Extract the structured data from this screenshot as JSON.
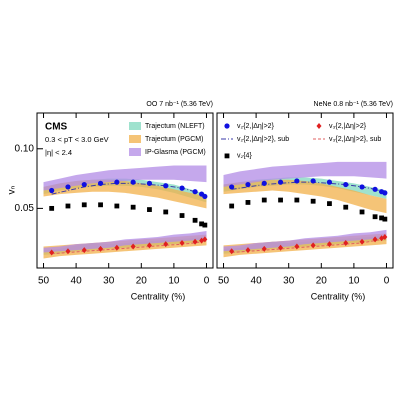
{
  "chart_data": [
    {
      "type": "scatter",
      "title": "OO 7 nb⁻¹ (5.36 TeV)",
      "y_label": "vₙ",
      "x_label": "Centrality (%)",
      "annotations": [
        "CMS",
        "0.3 < pT < 3.0 GeV",
        "|η| < 2.4"
      ],
      "xlim": [
        52,
        -2
      ],
      "xticks": [
        50,
        40,
        30,
        20,
        10,
        0
      ],
      "ylim": [
        0,
        0.13
      ],
      "yticks": [
        0.05,
        {
          "value": 0.1,
          "label": "0.10"
        }
      ],
      "bands": [
        {
          "name": "Trajectum (NLEFT)",
          "color": "#7fd8bd",
          "x": [
            50,
            45,
            40,
            35,
            30,
            25,
            20,
            15,
            10,
            5,
            0
          ],
          "lower": [
            0.062,
            0.065,
            0.067,
            0.068,
            0.069,
            0.069,
            0.068,
            0.066,
            0.063,
            0.059,
            0.055
          ],
          "upper": [
            0.068,
            0.071,
            0.073,
            0.074,
            0.075,
            0.075,
            0.074,
            0.072,
            0.07,
            0.066,
            0.062
          ]
        },
        {
          "name": "Trajectum (PGCM)",
          "color": "#f2b04a",
          "x": [
            50,
            45,
            40,
            35,
            30,
            25,
            20,
            15,
            10,
            5,
            0
          ],
          "lower": [
            0.06,
            0.062,
            0.063,
            0.064,
            0.064,
            0.063,
            0.061,
            0.059,
            0.056,
            0.053,
            0.05
          ],
          "upper": [
            0.068,
            0.071,
            0.073,
            0.074,
            0.074,
            0.073,
            0.071,
            0.069,
            0.066,
            0.063,
            0.06
          ]
        },
        {
          "name": "IP-Glasma (PGCM)",
          "color": "#b18be6",
          "x": [
            50,
            45,
            40,
            35,
            30,
            25,
            20,
            15,
            10,
            5,
            0
          ],
          "lower": [
            0.065,
            0.067,
            0.069,
            0.071,
            0.072,
            0.073,
            0.074,
            0.074,
            0.074,
            0.073,
            0.072
          ],
          "upper": [
            0.072,
            0.075,
            0.078,
            0.08,
            0.082,
            0.083,
            0.084,
            0.085,
            0.086,
            0.086,
            0.086
          ]
        },
        {
          "color": "#7fd8bd",
          "x": [
            50,
            45,
            40,
            35,
            30,
            25,
            20,
            15,
            10,
            5,
            0
          ],
          "lower": [
            0.011,
            0.012,
            0.014,
            0.015,
            0.016,
            0.017,
            0.018,
            0.019,
            0.02,
            0.021,
            0.022
          ],
          "upper": [
            0.015,
            0.016,
            0.019,
            0.021,
            0.02,
            0.021,
            0.022,
            0.023,
            0.024,
            0.025,
            0.026
          ]
        },
        {
          "color": "#f2b04a",
          "x": [
            50,
            45,
            40,
            35,
            30,
            25,
            20,
            15,
            10,
            5,
            0
          ],
          "lower": [
            0.008,
            0.01,
            0.011,
            0.012,
            0.013,
            0.014,
            0.015,
            0.016,
            0.017,
            0.018,
            0.019
          ],
          "upper": [
            0.018,
            0.019,
            0.02,
            0.021,
            0.022,
            0.023,
            0.024,
            0.025,
            0.026,
            0.027,
            0.028
          ]
        },
        {
          "color": "#b18be6",
          "x": [
            50,
            45,
            40,
            35,
            30,
            25,
            20,
            15,
            10,
            5,
            0
          ],
          "lower": [
            0.013,
            0.014,
            0.015,
            0.016,
            0.017,
            0.019,
            0.02,
            0.021,
            0.022,
            0.023,
            0.024
          ],
          "upper": [
            0.017,
            0.018,
            0.02,
            0.021,
            0.022,
            0.024,
            0.025,
            0.026,
            0.028,
            0.029,
            0.031
          ]
        }
      ],
      "x": [
        47.5,
        42.5,
        37.5,
        32.5,
        27.5,
        22.5,
        17.5,
        12.5,
        7.5,
        3.5,
        1.5,
        0.5
      ],
      "series": [
        {
          "marker": "dashdot",
          "color": "#3a3aa8",
          "values": [
            0.062,
            0.065,
            0.068,
            0.07,
            0.071,
            0.071,
            0.07,
            0.069,
            0.067,
            0.064,
            0.062,
            0.06
          ]
        },
        {
          "marker": "dashed",
          "color": "#e06060",
          "values": [
            0.012,
            0.013,
            0.014,
            0.015,
            0.016,
            0.017,
            0.018,
            0.019,
            0.02,
            0.021,
            0.022,
            0.023
          ]
        },
        {
          "marker": "circle",
          "color": "#1010e0",
          "values": [
            0.065,
            0.068,
            0.07,
            0.071,
            0.072,
            0.072,
            0.071,
            0.069,
            0.067,
            0.064,
            0.062,
            0.06
          ]
        },
        {
          "marker": "diamond",
          "color": "#e02020",
          "values": [
            0.013,
            0.014,
            0.015,
            0.016,
            0.017,
            0.018,
            0.019,
            0.02,
            0.021,
            0.022,
            0.023,
            0.024
          ]
        },
        {
          "marker": "square",
          "color": "#000000",
          "values": [
            0.05,
            0.052,
            0.053,
            0.053,
            0.052,
            0.051,
            0.049,
            0.047,
            0.044,
            0.04,
            0.037,
            0.036
          ]
        }
      ]
    },
    {
      "type": "scatter",
      "title": "NeNe 0.8 nb⁻¹ (5.36 TeV)",
      "x_label": "Centrality (%)",
      "xlim": [
        52,
        -2
      ],
      "xticks": [
        50,
        40,
        30,
        20,
        10,
        0
      ],
      "ylim": [
        0,
        0.13
      ],
      "bands": [
        {
          "color": "#7fd8bd",
          "x": [
            50,
            45,
            40,
            35,
            30,
            25,
            20,
            15,
            10,
            5,
            0
          ],
          "lower": [
            0.064,
            0.066,
            0.068,
            0.069,
            0.07,
            0.07,
            0.069,
            0.067,
            0.064,
            0.061,
            0.058
          ],
          "upper": [
            0.07,
            0.072,
            0.074,
            0.075,
            0.076,
            0.076,
            0.075,
            0.073,
            0.071,
            0.068,
            0.065
          ]
        },
        {
          "color": "#f2b04a",
          "x": [
            50,
            45,
            40,
            35,
            30,
            25,
            20,
            15,
            10,
            5,
            0
          ],
          "lower": [
            0.062,
            0.063,
            0.064,
            0.065,
            0.064,
            0.062,
            0.06,
            0.057,
            0.053,
            0.049,
            0.046
          ],
          "upper": [
            0.07,
            0.072,
            0.073,
            0.074,
            0.074,
            0.073,
            0.071,
            0.068,
            0.065,
            0.061,
            0.058
          ]
        },
        {
          "color": "#b18be6",
          "x": [
            50,
            45,
            40,
            35,
            30,
            25,
            20,
            15,
            10,
            5,
            0
          ],
          "lower": [
            0.068,
            0.07,
            0.072,
            0.074,
            0.075,
            0.076,
            0.077,
            0.077,
            0.077,
            0.076,
            0.075
          ],
          "upper": [
            0.078,
            0.081,
            0.083,
            0.085,
            0.086,
            0.087,
            0.088,
            0.089,
            0.089,
            0.089,
            0.089
          ]
        },
        {
          "color": "#7fd8bd",
          "x": [
            50,
            45,
            40,
            35,
            30,
            25,
            20,
            15,
            10,
            5,
            0
          ],
          "lower": [
            0.012,
            0.013,
            0.015,
            0.016,
            0.017,
            0.018,
            0.019,
            0.02,
            0.021,
            0.022,
            0.023
          ],
          "upper": [
            0.016,
            0.017,
            0.02,
            0.022,
            0.021,
            0.022,
            0.023,
            0.024,
            0.025,
            0.026,
            0.027
          ]
        },
        {
          "color": "#f2b04a",
          "x": [
            50,
            45,
            40,
            35,
            30,
            25,
            20,
            15,
            10,
            5,
            0
          ],
          "lower": [
            0.009,
            0.011,
            0.012,
            0.013,
            0.014,
            0.015,
            0.016,
            0.017,
            0.018,
            0.019,
            0.02
          ],
          "upper": [
            0.019,
            0.02,
            0.021,
            0.022,
            0.023,
            0.024,
            0.025,
            0.026,
            0.027,
            0.028,
            0.029
          ]
        },
        {
          "color": "#b18be6",
          "x": [
            50,
            45,
            40,
            35,
            30,
            25,
            20,
            15,
            10,
            5,
            0
          ],
          "lower": [
            0.014,
            0.015,
            0.016,
            0.017,
            0.018,
            0.02,
            0.021,
            0.022,
            0.023,
            0.024,
            0.025
          ],
          "upper": [
            0.018,
            0.019,
            0.021,
            0.022,
            0.023,
            0.025,
            0.026,
            0.027,
            0.029,
            0.03,
            0.032
          ]
        }
      ],
      "x": [
        47.5,
        42.5,
        37.5,
        32.5,
        27.5,
        22.5,
        17.5,
        12.5,
        7.5,
        3.5,
        1.5,
        0.5
      ],
      "series": [
        {
          "name": "v₂{2,|Δη|>2}, sub",
          "marker": "dashdot",
          "color": "#3a3aa8",
          "values": [
            0.066,
            0.068,
            0.07,
            0.071,
            0.072,
            0.072,
            0.071,
            0.07,
            0.068,
            0.066,
            0.064,
            0.063
          ]
        },
        {
          "name": "v₃{2,|Δη|>2}, sub",
          "marker": "dashed",
          "color": "#e06060",
          "values": [
            0.013,
            0.014,
            0.015,
            0.016,
            0.017,
            0.018,
            0.019,
            0.02,
            0.021,
            0.023,
            0.024,
            0.025
          ]
        },
        {
          "name": "v₂{2,|Δη|>2}",
          "marker": "circle",
          "color": "#1010e0",
          "values": [
            0.068,
            0.07,
            0.071,
            0.072,
            0.073,
            0.073,
            0.072,
            0.07,
            0.068,
            0.066,
            0.064,
            0.063
          ]
        },
        {
          "name": "v₃{2,|Δη|>2}",
          "marker": "diamond",
          "color": "#e02020",
          "values": [
            0.014,
            0.015,
            0.016,
            0.017,
            0.018,
            0.019,
            0.02,
            0.021,
            0.022,
            0.024,
            0.025,
            0.026
          ]
        },
        {
          "name": "v₂{4}",
          "marker": "square",
          "color": "#000000",
          "values": [
            0.052,
            0.055,
            0.057,
            0.057,
            0.057,
            0.056,
            0.054,
            0.051,
            0.047,
            0.043,
            0.042,
            0.041
          ]
        }
      ]
    }
  ]
}
